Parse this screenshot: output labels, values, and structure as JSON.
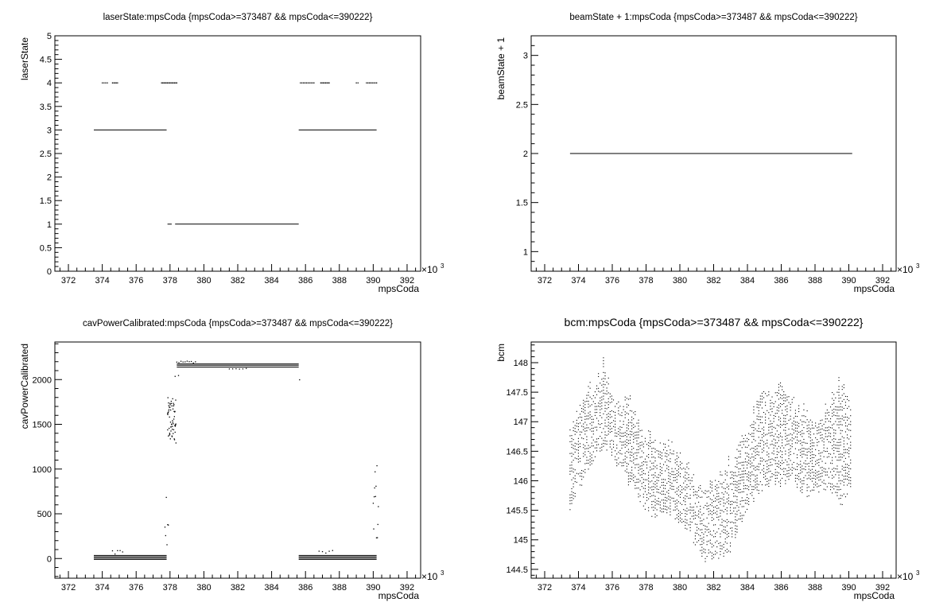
{
  "chart_data": [
    {
      "type": "scatter",
      "title": "laserState:mpsCoda {mpsCoda>=373487 && mpsCoda<=390222}",
      "xlabel": "mpsCoda",
      "ylabel": "laserState",
      "x_exponent": "×10",
      "x_exponent_power": "3",
      "xlim": [
        371.2,
        392.8
      ],
      "ylim": [
        0,
        5
      ],
      "x_ticks": [
        372,
        374,
        376,
        378,
        380,
        382,
        384,
        386,
        388,
        390,
        392
      ],
      "x_tick_labels": [
        "372",
        "374",
        "376",
        "378",
        "380",
        "382",
        "384",
        "386",
        "388",
        "390",
        "392"
      ],
      "y_ticks": [
        0,
        0.5,
        1,
        1.5,
        2,
        2.5,
        3,
        3.5,
        4,
        4.5,
        5
      ],
      "y_tick_labels": [
        "0",
        "0.5",
        "1",
        "1.5",
        "2",
        "2.5",
        "3",
        "3.5",
        "4",
        "4.5",
        "5"
      ],
      "segments": [
        {
          "x0": 373.5,
          "x1": 377.8,
          "y": 3
        },
        {
          "x0": 385.6,
          "x1": 390.2,
          "y": 3
        },
        {
          "x0": 377.85,
          "x1": 378.1,
          "y": 1
        },
        {
          "x0": 378.3,
          "x1": 385.6,
          "y": 1
        }
      ],
      "point_clusters": [
        {
          "x0": 374.0,
          "x1": 374.3,
          "y": 4,
          "n": 4
        },
        {
          "x0": 374.6,
          "x1": 374.9,
          "y": 4,
          "n": 5
        },
        {
          "x0": 377.5,
          "x1": 378.4,
          "y": 4,
          "n": 14
        },
        {
          "x0": 385.7,
          "x1": 386.5,
          "y": 4,
          "n": 10
        },
        {
          "x0": 386.9,
          "x1": 387.4,
          "y": 4,
          "n": 8
        },
        {
          "x0": 389.0,
          "x1": 389.1,
          "y": 4,
          "n": 2
        },
        {
          "x0": 389.6,
          "x1": 390.2,
          "y": 4,
          "n": 8
        }
      ]
    },
    {
      "type": "scatter",
      "title": "beamState + 1:mpsCoda {mpsCoda>=373487 && mpsCoda<=390222}",
      "xlabel": "mpsCoda",
      "ylabel": "beamState + 1",
      "x_exponent": "×10",
      "x_exponent_power": "3",
      "xlim": [
        371.2,
        392.8
      ],
      "ylim": [
        0.8,
        3.2
      ],
      "x_ticks": [
        372,
        374,
        376,
        378,
        380,
        382,
        384,
        386,
        388,
        390,
        392
      ],
      "x_tick_labels": [
        "372",
        "374",
        "376",
        "378",
        "380",
        "382",
        "384",
        "386",
        "388",
        "390",
        "392"
      ],
      "y_ticks": [
        1,
        1.5,
        2,
        2.5,
        3
      ],
      "y_tick_labels": [
        "1",
        "1.5",
        "2",
        "2.5",
        "3"
      ],
      "segments": [
        {
          "x0": 373.5,
          "x1": 390.2,
          "y": 2
        }
      ],
      "point_clusters": []
    },
    {
      "type": "scatter",
      "title": "cavPowerCalibrated:mpsCoda {mpsCoda>=373487 && mpsCoda<=390222}",
      "xlabel": "mpsCoda",
      "ylabel": "cavPowerCalibrated",
      "x_exponent": "×10",
      "x_exponent_power": "3",
      "xlim": [
        371.2,
        392.8
      ],
      "ylim": [
        -220,
        2420
      ],
      "x_ticks": [
        372,
        374,
        376,
        378,
        380,
        382,
        384,
        386,
        388,
        390,
        392
      ],
      "x_tick_labels": [
        "372",
        "374",
        "376",
        "378",
        "380",
        "382",
        "384",
        "386",
        "388",
        "390",
        "392"
      ],
      "y_ticks": [
        0,
        500,
        1000,
        1500,
        2000
      ],
      "y_tick_labels": [
        "0",
        "500",
        "1000",
        "1500",
        "2000"
      ],
      "segments": [
        {
          "x0": 373.5,
          "x1": 377.8,
          "y": 35
        },
        {
          "x0": 373.5,
          "x1": 377.8,
          "y": 20
        },
        {
          "x0": 373.5,
          "x1": 377.8,
          "y": 5
        },
        {
          "x0": 373.5,
          "x1": 377.8,
          "y": -10
        },
        {
          "x0": 378.4,
          "x1": 385.6,
          "y": 2175
        },
        {
          "x0": 378.4,
          "x1": 385.6,
          "y": 2160
        },
        {
          "x0": 378.4,
          "x1": 385.6,
          "y": 2140
        },
        {
          "x0": 385.6,
          "x1": 390.2,
          "y": 35
        },
        {
          "x0": 385.6,
          "x1": 390.2,
          "y": 20
        },
        {
          "x0": 385.6,
          "x1": 390.2,
          "y": 5
        },
        {
          "x0": 385.6,
          "x1": 390.2,
          "y": -10
        }
      ],
      "point_clusters": [
        {
          "x0": 377.85,
          "x1": 378.35,
          "y0": 1280,
          "y1": 1800,
          "n": 60
        },
        {
          "x0": 377.7,
          "x1": 377.9,
          "y0": 150,
          "y1": 950,
          "n": 6
        },
        {
          "x0": 378.4,
          "x1": 379.5,
          "y0": 2185,
          "y1": 2210,
          "n": 10
        },
        {
          "x0": 381.5,
          "x1": 382.5,
          "y0": 2115,
          "y1": 2125,
          "n": 6
        },
        {
          "x0": 378.3,
          "x1": 378.5,
          "y0": 2030,
          "y1": 2060,
          "n": 2
        },
        {
          "x0": 385.6,
          "x1": 385.7,
          "y0": 1980,
          "y1": 2000,
          "n": 1
        },
        {
          "x0": 374.6,
          "x1": 375.2,
          "y0": 50,
          "y1": 110,
          "n": 5
        },
        {
          "x0": 386.8,
          "x1": 387.6,
          "y0": 50,
          "y1": 90,
          "n": 5
        },
        {
          "x0": 390.0,
          "x1": 390.3,
          "y0": 150,
          "y1": 1100,
          "n": 12
        }
      ]
    },
    {
      "type": "scatter",
      "title": "bcm:mpsCoda {mpsCoda>=373487 && mpsCoda<=390222}",
      "xlabel": "mpsCoda",
      "ylabel": "bcm",
      "x_exponent": "×10",
      "x_exponent_power": "3",
      "xlim": [
        371.2,
        392.8
      ],
      "ylim": [
        144.35,
        148.35
      ],
      "x_ticks": [
        372,
        374,
        376,
        378,
        380,
        382,
        384,
        386,
        388,
        390,
        392
      ],
      "x_tick_labels": [
        "372",
        "374",
        "376",
        "378",
        "380",
        "382",
        "384",
        "386",
        "388",
        "390",
        "392"
      ],
      "y_ticks": [
        144.5,
        145,
        145.5,
        146,
        146.5,
        147,
        147.5,
        148
      ],
      "y_tick_labels": [
        "144.5",
        "145",
        "145.5",
        "146",
        "146.5",
        "147",
        "147.5",
        "148"
      ],
      "segments": [],
      "band": {
        "x": [
          373.5,
          374.0,
          374.5,
          375.0,
          375.5,
          376.0,
          376.5,
          377.0,
          377.5,
          378.0,
          378.5,
          379.0,
          379.5,
          380.0,
          380.5,
          381.0,
          381.5,
          382.0,
          382.5,
          383.0,
          383.5,
          384.0,
          384.5,
          385.0,
          385.5,
          386.0,
          386.5,
          387.0,
          387.5,
          388.0,
          388.5,
          389.0,
          389.5,
          390.0,
          390.2
        ],
        "low": [
          145.5,
          145.9,
          146.2,
          146.4,
          146.6,
          146.5,
          146.2,
          146.0,
          145.8,
          145.5,
          145.4,
          145.4,
          145.5,
          145.3,
          145.2,
          144.9,
          144.7,
          144.7,
          144.7,
          144.9,
          145.2,
          145.5,
          145.8,
          145.9,
          146.0,
          146.0,
          146.1,
          145.9,
          145.8,
          145.8,
          145.9,
          145.9,
          145.5,
          145.9,
          146.0
        ],
        "high": [
          146.8,
          147.2,
          147.6,
          147.6,
          148.0,
          147.5,
          147.3,
          147.4,
          147.0,
          146.8,
          146.7,
          146.6,
          146.6,
          146.4,
          146.2,
          145.9,
          145.9,
          146.0,
          146.2,
          146.4,
          146.7,
          146.9,
          147.3,
          147.6,
          147.5,
          147.6,
          147.5,
          147.3,
          147.2,
          147.0,
          147.1,
          147.5,
          147.7,
          147.4,
          147.2
        ]
      }
    }
  ]
}
